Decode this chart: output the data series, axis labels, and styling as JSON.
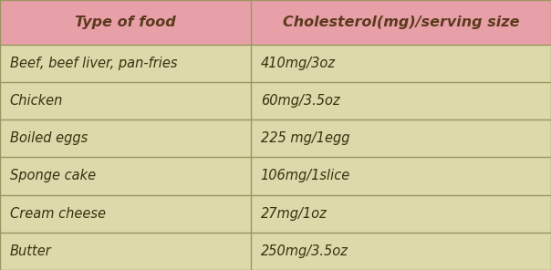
{
  "col_headers": [
    "Type of food",
    "Cholesterol(mg)/serving size"
  ],
  "rows": [
    [
      "Beef, beef liver, pan-fries",
      "410mg/3oz"
    ],
    [
      "Chicken",
      "60mg/3.5oz"
    ],
    [
      "Boiled eggs",
      "225 mg/1egg"
    ],
    [
      "Sponge cake",
      "106mg/1slice"
    ],
    [
      "Cream cheese",
      "27mg/1oz"
    ],
    [
      "Butter",
      "250mg/3.5oz"
    ]
  ],
  "header_bg_color": "#e8a0a8",
  "row_bg_color": "#ddd9aa",
  "header_text_color": "#5c3a1e",
  "row_text_color": "#3a3010",
  "border_color": "#9a9660",
  "col_split": 0.455,
  "header_fontsize": 11.5,
  "row_fontsize": 10.5,
  "fig_width": 6.04,
  "fig_height": 2.96,
  "dpi": 100
}
